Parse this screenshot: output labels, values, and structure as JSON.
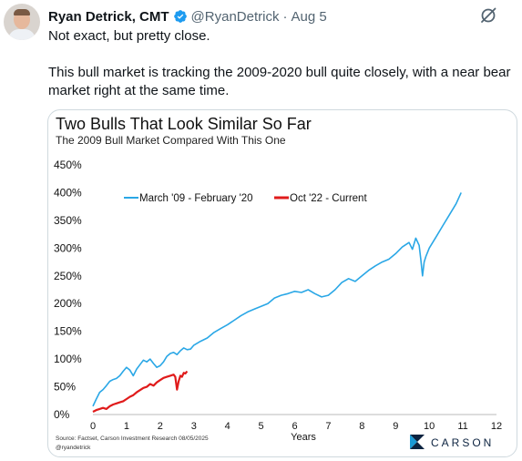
{
  "tweet": {
    "author_name": "Ryan Detrick, CMT",
    "handle": "@RyanDetrick",
    "separator": "·",
    "date": "Aug 5",
    "line1": "Not exact, but pretty close.",
    "line2": "This bull market is tracking the 2009-2020 bull quite closely, with a near bear market right at the same time."
  },
  "colors": {
    "blue_series": "#2aa7e6",
    "red_series": "#e01b1b",
    "verified": "#1d9bf0",
    "carson_dark": "#0c2340",
    "carson_teal": "#1a9ad6"
  },
  "icons": {
    "verified": "verified-badge-icon",
    "more": "grok-slash-icon",
    "logo": "carson-logo-icon"
  },
  "chart_data": {
    "type": "line",
    "title": "Two Bulls That Look Similar So Far",
    "subtitle": "The 2009 Bull Market Compared With This One",
    "xlabel": "Years",
    "ylabel": "",
    "xlim": [
      0,
      12
    ],
    "ylim": [
      0,
      450
    ],
    "x_ticks": [
      "0",
      "1",
      "2",
      "3",
      "4",
      "5",
      "6",
      "7",
      "8",
      "9",
      "10",
      "11",
      "12"
    ],
    "y_ticks": [
      "0%",
      "50%",
      "100%",
      "150%",
      "200%",
      "250%",
      "300%",
      "350%",
      "400%",
      "450%"
    ],
    "legend_position": "top-left",
    "grid": false,
    "series": [
      {
        "name": "March '09 - February '20",
        "color": "#2aa7e6",
        "x": [
          0,
          0.1,
          0.2,
          0.3,
          0.4,
          0.5,
          0.6,
          0.7,
          0.8,
          0.9,
          1.0,
          1.1,
          1.2,
          1.3,
          1.4,
          1.5,
          1.6,
          1.7,
          1.8,
          1.9,
          2.0,
          2.1,
          2.2,
          2.3,
          2.4,
          2.5,
          2.6,
          2.7,
          2.8,
          2.9,
          3.0,
          3.2,
          3.4,
          3.6,
          3.8,
          4.0,
          4.2,
          4.4,
          4.6,
          4.8,
          5.0,
          5.2,
          5.4,
          5.6,
          5.8,
          6.0,
          6.2,
          6.4,
          6.6,
          6.8,
          7.0,
          7.2,
          7.4,
          7.6,
          7.8,
          8.0,
          8.2,
          8.4,
          8.6,
          8.8,
          9.0,
          9.2,
          9.4,
          9.5,
          9.6,
          9.7,
          9.75,
          9.8,
          9.85,
          9.9,
          10.0,
          10.2,
          10.4,
          10.6,
          10.8,
          10.95
        ],
        "values": [
          15,
          28,
          40,
          45,
          52,
          60,
          63,
          65,
          70,
          78,
          85,
          80,
          70,
          82,
          90,
          98,
          95,
          100,
          92,
          85,
          88,
          95,
          105,
          110,
          112,
          108,
          115,
          120,
          117,
          118,
          125,
          132,
          138,
          148,
          155,
          162,
          170,
          178,
          185,
          190,
          195,
          200,
          210,
          215,
          218,
          222,
          220,
          225,
          218,
          212,
          215,
          225,
          238,
          245,
          240,
          250,
          260,
          268,
          275,
          280,
          290,
          302,
          310,
          298,
          318,
          305,
          280,
          250,
          275,
          285,
          300,
          320,
          340,
          360,
          380,
          400
        ]
      },
      {
        "name": "Oct '22 - Current",
        "color": "#e01b1b",
        "x": [
          0,
          0.1,
          0.2,
          0.3,
          0.4,
          0.5,
          0.6,
          0.7,
          0.8,
          0.9,
          1.0,
          1.1,
          1.2,
          1.3,
          1.4,
          1.5,
          1.6,
          1.7,
          1.8,
          1.9,
          2.0,
          2.1,
          2.2,
          2.3,
          2.4,
          2.45,
          2.5,
          2.55,
          2.6,
          2.65,
          2.7,
          2.75,
          2.8
        ],
        "values": [
          5,
          8,
          10,
          12,
          10,
          15,
          18,
          20,
          22,
          24,
          28,
          32,
          35,
          40,
          44,
          48,
          50,
          55,
          52,
          58,
          62,
          66,
          68,
          70,
          72,
          68,
          45,
          60,
          70,
          68,
          75,
          74,
          78
        ]
      }
    ],
    "source": "Source: Factset, Carson Investment Research 08/05/2025",
    "credit": "@ryandetrick",
    "logo_text": "CARSON"
  }
}
